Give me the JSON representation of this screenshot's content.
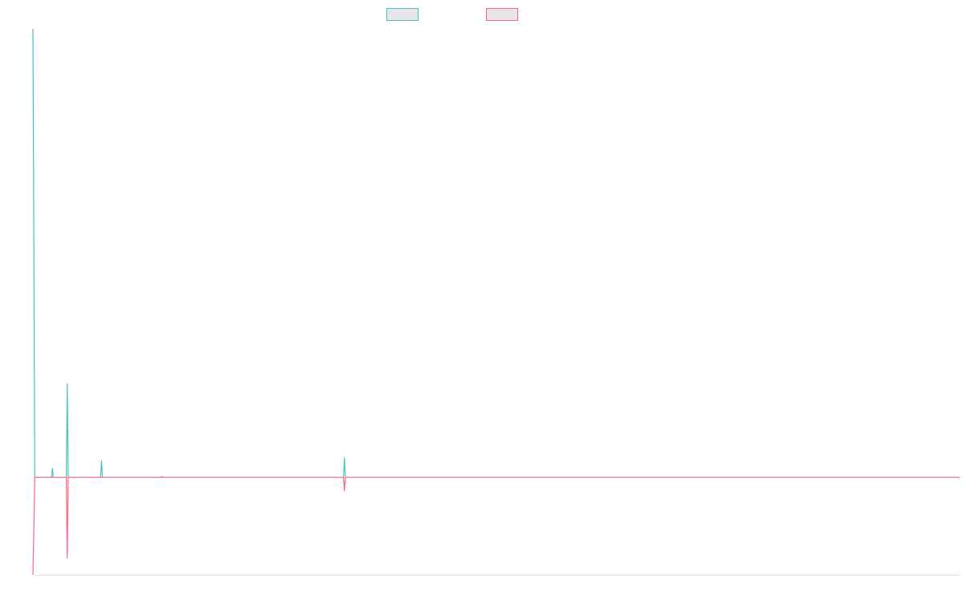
{
  "chart_data": {
    "type": "line",
    "title": "",
    "xlabel": "",
    "ylabel": "",
    "legend": {
      "placement": "top-center"
    },
    "grid": false,
    "xlim": [
      0,
      1000
    ],
    "ylim": [
      -100,
      460
    ],
    "baseline": 0,
    "series": [
      {
        "color": "#4bc0c0",
        "fill": "#e6e6e6",
        "points": [
          [
            0,
            460
          ],
          [
            2,
            0
          ],
          [
            20,
            0
          ],
          [
            21,
            9
          ],
          [
            22,
            0
          ],
          [
            36,
            0
          ],
          [
            37,
            96
          ],
          [
            38,
            0
          ],
          [
            73,
            0
          ],
          [
            74,
            17
          ],
          [
            75,
            0
          ],
          [
            81,
            0
          ],
          [
            82,
            0
          ],
          [
            83,
            0
          ],
          [
            98,
            0
          ],
          [
            99,
            0
          ],
          [
            100,
            0
          ],
          [
            138,
            0
          ],
          [
            139,
            1
          ],
          [
            140,
            0
          ],
          [
            335,
            0
          ],
          [
            336,
            20
          ],
          [
            337,
            0
          ],
          [
            1000,
            0
          ]
        ]
      },
      {
        "color": "#ff6384",
        "fill": "#e6e6e6",
        "points": [
          [
            0,
            -100
          ],
          [
            2,
            0
          ],
          [
            36,
            0
          ],
          [
            37,
            -83
          ],
          [
            38,
            0
          ],
          [
            335,
            0
          ],
          [
            336,
            -14
          ],
          [
            337,
            0
          ],
          [
            1000,
            0
          ]
        ]
      }
    ]
  }
}
